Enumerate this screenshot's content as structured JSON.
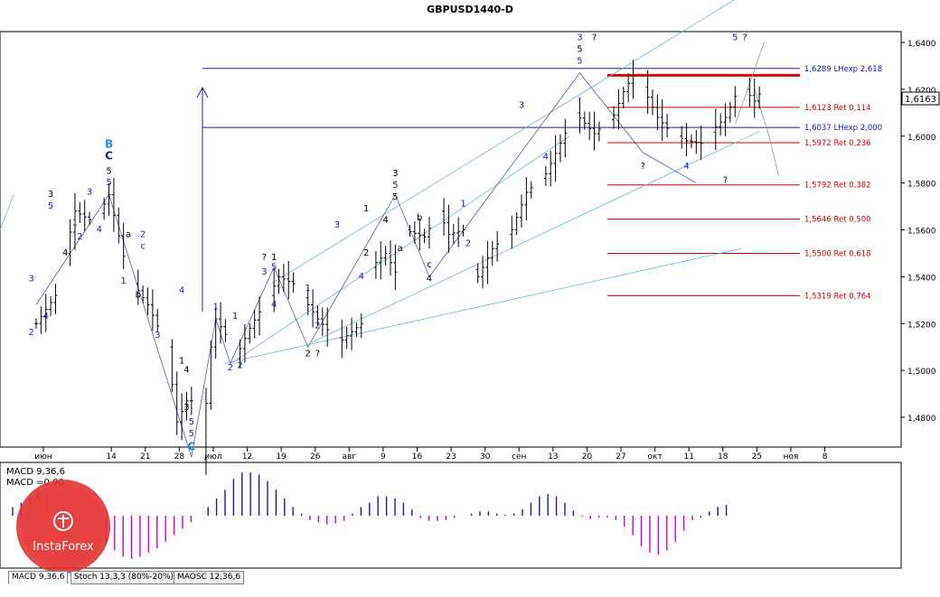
{
  "window": {
    "title": "GBPUSD1440-D"
  },
  "current_price": "1,6163",
  "chart_data": {
    "type": "line",
    "title": "GBPUSD1440-D",
    "ylim": [
      1.472,
      1.645
    ],
    "y_ticks": [
      "1,6400",
      "1,6200",
      "1,6000",
      "1,5800",
      "1,5600",
      "1,5400",
      "1,5200",
      "1,5000",
      "1,4800"
    ],
    "x_ticks": [
      "июн",
      "14",
      "21",
      "28",
      "июл",
      "12",
      "19",
      "26",
      "авг",
      "9",
      "16",
      "23",
      "30",
      "сен",
      "13",
      "20",
      "27",
      "окт",
      "11",
      "18",
      "25",
      "ноя",
      "8"
    ],
    "x_tick_days": [
      0,
      14,
      21,
      28,
      35,
      42,
      49,
      56,
      63,
      70,
      77,
      84,
      91,
      98,
      105,
      112,
      119,
      126,
      133,
      140,
      147,
      154,
      161
    ],
    "price_path": [
      [
        0,
        1.52
      ],
      [
        4,
        1.532
      ],
      [
        8,
        1.568
      ],
      [
        12,
        1.563
      ],
      [
        15,
        1.575
      ],
      [
        19,
        1.54
      ],
      [
        23,
        1.528
      ],
      [
        27,
        1.51
      ],
      [
        29,
        1.478
      ],
      [
        31,
        1.487
      ],
      [
        33,
        1.487
      ],
      [
        34,
        1.462
      ],
      [
        36,
        1.51
      ],
      [
        37,
        1.522
      ],
      [
        40,
        1.512
      ],
      [
        41,
        1.505
      ],
      [
        44,
        1.518
      ],
      [
        48,
        1.532
      ],
      [
        50,
        1.54
      ],
      [
        53,
        1.537
      ],
      [
        56,
        1.528
      ],
      [
        58,
        1.522
      ],
      [
        61,
        1.515
      ],
      [
        63,
        1.513
      ],
      [
        67,
        1.52
      ],
      [
        68,
        1.542
      ],
      [
        72,
        1.55
      ],
      [
        74,
        1.542
      ],
      [
        76,
        1.56
      ],
      [
        80,
        1.557
      ],
      [
        83,
        1.568
      ],
      [
        85,
        1.558
      ],
      [
        88,
        1.56
      ],
      [
        90,
        1.543
      ],
      [
        91,
        1.54
      ],
      [
        94,
        1.552
      ],
      [
        98,
        1.56
      ],
      [
        101,
        1.576
      ],
      [
        105,
        1.584
      ],
      [
        108,
        1.597
      ],
      [
        111,
        1.61
      ],
      [
        115,
        1.601
      ],
      [
        119,
        1.609
      ],
      [
        121,
        1.619
      ],
      [
        123,
        1.626
      ],
      [
        125,
        1.621
      ],
      [
        128,
        1.608
      ],
      [
        131,
        1.601
      ],
      [
        134,
        1.598
      ],
      [
        137,
        1.597
      ],
      [
        140,
        1.604
      ],
      [
        142,
        1.608
      ],
      [
        144,
        1.617
      ],
      [
        146,
        1.62
      ],
      [
        148,
        1.615
      ],
      [
        149,
        1.618
      ]
    ],
    "levels": [
      {
        "label": "1,6289 LHexp 2,618",
        "value": 1.6289,
        "color": "#1a1aa8"
      },
      {
        "label": "1,6123 Ret 0,114",
        "value": 1.6123,
        "color": "#cc0000"
      },
      {
        "label": "1,6037 LHexp 2,000",
        "value": 1.6037,
        "color": "#1a1aa8"
      },
      {
        "label": "1,5972 Ret 0,236",
        "value": 1.5972,
        "color": "#cc0000"
      },
      {
        "label": "1,5792 Ret 0,382",
        "value": 1.5792,
        "color": "#cc0000"
      },
      {
        "label": "1,5646 Ret 0,500",
        "value": 1.5646,
        "color": "#cc0000"
      },
      {
        "label": "1,5500 Ret 0,618",
        "value": 1.55,
        "color": "#cc0000"
      },
      {
        "label": "1,5319 Ret 0,764",
        "value": 1.5319,
        "color": "#cc0000"
      }
    ],
    "resistance_level": 1.626,
    "wave_labels": [
      {
        "text": "B",
        "d": 15,
        "p": 1.595,
        "color": "#1e8fc0"
      },
      {
        "text": "C",
        "d": 15,
        "p": 1.59,
        "color": "#1a1aa8"
      },
      {
        "text": "5",
        "d": 15,
        "p": 1.584,
        "color": "#000000"
      },
      {
        "text": "5",
        "d": 15,
        "p": 1.579,
        "color": "#1a1aa8"
      },
      {
        "text": "3",
        "d": 3,
        "p": 1.574,
        "color": "#000000"
      },
      {
        "text": "5",
        "d": 3,
        "p": 1.569,
        "color": "#1a1aa8"
      },
      {
        "text": "3",
        "d": 11,
        "p": 1.575,
        "color": "#1a1aa8"
      },
      {
        "text": "1",
        "d": 8,
        "p": 1.562,
        "color": "#1a1aa8"
      },
      {
        "text": "2",
        "d": 9,
        "p": 1.556,
        "color": "#1a1aa8"
      },
      {
        "text": "4",
        "d": 6,
        "p": 1.549,
        "color": "#000000"
      },
      {
        "text": "4",
        "d": 13,
        "p": 1.559,
        "color": "#1a1aa8"
      },
      {
        "text": "3",
        "d": -1,
        "p": 1.538,
        "color": "#1a1aa8"
      },
      {
        "text": "4",
        "d": 2,
        "p": 1.522,
        "color": "#1a1aa8"
      },
      {
        "text": "2",
        "d": -1,
        "p": 1.515,
        "color": "#1a1aa8"
      },
      {
        "text": "a",
        "d": 19,
        "p": 1.557,
        "color": "#000000"
      },
      {
        "text": "2",
        "d": 22,
        "p": 1.557,
        "color": "#1a1aa8"
      },
      {
        "text": "c",
        "d": 22,
        "p": 1.552,
        "color": "#1a1aa8"
      },
      {
        "text": "1",
        "d": 18,
        "p": 1.537,
        "color": "#1a1aa8"
      },
      {
        "text": "b",
        "d": 21,
        "p": 1.531,
        "color": "#000000"
      },
      {
        "text": "3",
        "d": 25,
        "p": 1.514,
        "color": "#1a1aa8"
      },
      {
        "text": "4",
        "d": 30,
        "p": 1.533,
        "color": "#1a1aa8"
      },
      {
        "text": "1",
        "d": 30,
        "p": 1.503,
        "color": "#000000"
      },
      {
        "text": "4",
        "d": 31,
        "p": 1.499,
        "color": "#000000"
      },
      {
        "text": "3",
        "d": 31,
        "p": 1.483,
        "color": "#000000"
      },
      {
        "text": "5",
        "d": 32,
        "p": 1.477,
        "color": "#1a1aa8"
      },
      {
        "text": "5",
        "d": 32,
        "p": 1.472,
        "color": "#1a1aa8"
      },
      {
        "text": "C",
        "d": 32,
        "p": 1.466,
        "color": "#1e8fc0"
      },
      {
        "text": "1",
        "d": 37,
        "p": 1.526,
        "color": "#1a1aa8"
      },
      {
        "text": "2",
        "d": 42,
        "p": 1.501,
        "color": "#1a1aa8"
      },
      {
        "text": "2",
        "d": 40,
        "p": 1.5,
        "color": "#1a1aa8"
      },
      {
        "text": "1",
        "d": 41,
        "p": 1.522,
        "color": "#1a1aa8"
      },
      {
        "text": "3",
        "d": 47,
        "p": 1.541,
        "color": "#1a1aa8"
      },
      {
        "text": "?",
        "d": 47,
        "p": 1.547,
        "color": "#000000"
      },
      {
        "text": "1",
        "d": 49,
        "p": 1.547,
        "color": "#000000"
      },
      {
        "text": "5",
        "d": 49,
        "p": 1.543,
        "color": "#1a1aa8"
      },
      {
        "text": "4",
        "d": 49,
        "p": 1.527,
        "color": "#1a1aa8"
      },
      {
        "text": "1",
        "d": 56,
        "p": 1.534,
        "color": "#1a1aa8"
      },
      {
        "text": "2",
        "d": 58,
        "p": 1.518,
        "color": "#1a1aa8"
      },
      {
        "text": "2",
        "d": 56,
        "p": 1.506,
        "color": "#000000"
      },
      {
        "text": "?",
        "d": 58,
        "p": 1.506,
        "color": "#000000"
      },
      {
        "text": "3",
        "d": 62,
        "p": 1.561,
        "color": "#1a1aa8"
      },
      {
        "text": "4",
        "d": 67,
        "p": 1.539,
        "color": "#1a1aa8"
      },
      {
        "text": "1",
        "d": 68,
        "p": 1.568,
        "color": "#000000"
      },
      {
        "text": "2",
        "d": 68,
        "p": 1.549,
        "color": "#000000"
      },
      {
        "text": "4",
        "d": 72,
        "p": 1.563,
        "color": "#000000"
      },
      {
        "text": "3",
        "d": 74,
        "p": 1.583,
        "color": "#000000"
      },
      {
        "text": "5",
        "d": 74,
        "p": 1.578,
        "color": "#1a1aa8"
      },
      {
        "text": "5",
        "d": 74,
        "p": 1.573,
        "color": "#000000"
      },
      {
        "text": "a",
        "d": 75,
        "p": 1.551,
        "color": "#000000"
      },
      {
        "text": "b",
        "d": 79,
        "p": 1.564,
        "color": "#000000"
      },
      {
        "text": "c",
        "d": 81,
        "p": 1.544,
        "color": "#000000"
      },
      {
        "text": "4",
        "d": 81,
        "p": 1.538,
        "color": "#000000"
      },
      {
        "text": "1",
        "d": 88,
        "p": 1.57,
        "color": "#1a1aa8"
      },
      {
        "text": "2",
        "d": 89,
        "p": 1.553,
        "color": "#1a1aa8"
      },
      {
        "text": "3",
        "d": 100,
        "p": 1.612,
        "color": "#1a1aa8"
      },
      {
        "text": "4",
        "d": 105,
        "p": 1.59,
        "color": "#1a1aa8"
      },
      {
        "text": "3",
        "d": 112,
        "p": 1.641,
        "color": "#1a1aa8"
      },
      {
        "text": "?",
        "d": 115,
        "p": 1.641,
        "color": "#000000"
      },
      {
        "text": "5",
        "d": 112,
        "p": 1.636,
        "color": "#000000"
      },
      {
        "text": "5",
        "d": 112,
        "p": 1.631,
        "color": "#1a1aa8"
      },
      {
        "text": "?",
        "d": 125,
        "p": 1.586,
        "color": "#000000"
      },
      {
        "text": "4",
        "d": 134,
        "p": 1.586,
        "color": "#1a1aa8"
      },
      {
        "text": "?",
        "d": 142,
        "p": 1.58,
        "color": "#000000"
      },
      {
        "text": "5",
        "d": 144,
        "p": 1.641,
        "color": "#1a1aa8"
      },
      {
        "text": "?",
        "d": 146,
        "p": 1.641,
        "color": "#000000"
      }
    ]
  },
  "indicator": {
    "label_line1": "MACD 9,36,6",
    "label_line2": "MACD =0,00",
    "histogram": [
      0.2,
      0.3,
      0.45,
      0.6,
      0.6,
      0.5,
      0.3,
      0.1,
      -0.1,
      -0.3,
      -0.5,
      -0.65,
      -0.8,
      -0.95,
      -1.0,
      -0.95,
      -0.85,
      -0.75,
      -0.6,
      -0.45,
      -0.3,
      -0.15,
      0.0,
      0.2,
      0.4,
      0.6,
      0.85,
      1.0,
      1.0,
      0.95,
      0.8,
      0.6,
      0.4,
      0.2,
      0.05,
      -0.1,
      -0.15,
      -0.2,
      -0.18,
      -0.12,
      0.05,
      0.2,
      0.3,
      0.45,
      0.45,
      0.4,
      0.3,
      0.15,
      -0.05,
      -0.12,
      -0.12,
      -0.1,
      -0.05,
      0.0,
      0.05,
      0.1,
      0.1,
      0.05,
      0.02,
      0.05,
      0.15,
      0.3,
      0.45,
      0.5,
      0.45,
      0.3,
      0.12,
      -0.02,
      -0.08,
      -0.05,
      -0.05,
      -0.1,
      -0.25,
      -0.45,
      -0.7,
      -0.85,
      -0.9,
      -0.8,
      -0.6,
      -0.35,
      -0.1,
      -0.05,
      0.1,
      0.2,
      0.25
    ]
  },
  "tabs": [
    {
      "label": "MACD 9,36,6"
    },
    {
      "label": "Stoch 13,3,3 (80%-20%)"
    },
    {
      "label": "MAOSC 12,36,6"
    }
  ],
  "logo": {
    "text": "InstaForex"
  }
}
